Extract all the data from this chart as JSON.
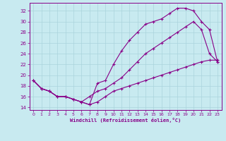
{
  "xlabel": "Windchill (Refroidissement éolien,°C)",
  "xlim": [
    -0.5,
    23.5
  ],
  "ylim": [
    13.5,
    33.5
  ],
  "xticks": [
    0,
    1,
    2,
    3,
    4,
    5,
    6,
    7,
    8,
    9,
    10,
    11,
    12,
    13,
    14,
    15,
    16,
    17,
    18,
    19,
    20,
    21,
    22,
    23
  ],
  "yticks": [
    14,
    16,
    18,
    20,
    22,
    24,
    26,
    28,
    30,
    32
  ],
  "bg_color": "#c8eaf0",
  "grid_color": "#aad4dc",
  "line_color": "#880088",
  "line1_x": [
    0,
    1,
    2,
    3,
    4,
    5,
    6,
    7,
    8,
    9,
    10,
    11,
    12,
    13,
    14,
    15,
    16,
    17,
    18,
    19,
    20,
    21,
    22,
    23
  ],
  "line1_y": [
    19,
    17.5,
    17,
    16,
    16,
    15.5,
    15,
    14.5,
    18.5,
    19,
    22,
    24.5,
    26.5,
    28,
    29.5,
    30,
    30.5,
    31.5,
    32.5,
    32.5,
    32,
    30,
    28.5,
    22.5
  ],
  "line2_x": [
    0,
    1,
    2,
    3,
    4,
    5,
    6,
    7,
    8,
    9,
    10,
    11,
    12,
    13,
    14,
    15,
    16,
    17,
    18,
    19,
    20,
    21,
    22,
    23
  ],
  "line2_y": [
    19,
    17.5,
    17,
    16,
    16,
    15.5,
    15,
    16,
    17,
    17.5,
    18.5,
    19.5,
    21,
    22.5,
    24,
    25,
    26,
    27,
    28,
    29,
    30,
    28.5,
    24,
    22.5
  ],
  "line3_x": [
    0,
    1,
    2,
    3,
    4,
    5,
    6,
    7,
    8,
    9,
    10,
    11,
    12,
    13,
    14,
    15,
    16,
    17,
    18,
    19,
    20,
    21,
    22,
    23
  ],
  "line3_y": [
    19,
    17.5,
    17,
    16,
    16,
    15.5,
    15,
    14.5,
    15,
    16,
    17,
    17.5,
    18,
    18.5,
    19,
    19.5,
    20,
    20.5,
    21,
    21.5,
    22,
    22.5,
    22.8,
    22.8
  ]
}
